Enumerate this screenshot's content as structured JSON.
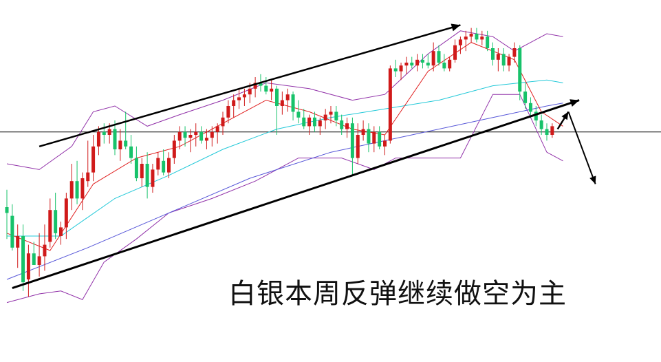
{
  "caption": "白银本周反弹继续做空为主",
  "colors": {
    "up": "#d01a1a",
    "down": "#17c26a",
    "ma_short": "#e02020",
    "ma_mid": "#20c8d8",
    "ma_long": "#5555d8",
    "band": "#9030a8",
    "trendline": "#000000",
    "level_line": "#000000"
  },
  "chart_data": {
    "type": "candlestick",
    "title": "",
    "grid": false,
    "y_range": [
      0,
      100
    ],
    "level_line": 61,
    "candles": [
      {
        "o": 35,
        "h": 41,
        "l": 24,
        "c": 33
      },
      {
        "o": 32,
        "h": 36,
        "l": 20,
        "c": 21
      },
      {
        "o": 21,
        "h": 29,
        "l": 14,
        "c": 25
      },
      {
        "o": 25,
        "h": 29,
        "l": 6,
        "c": 9
      },
      {
        "o": 10,
        "h": 22,
        "l": 4,
        "c": 19
      },
      {
        "o": 19,
        "h": 23,
        "l": 15,
        "c": 15
      },
      {
        "o": 15,
        "h": 26,
        "l": 11,
        "c": 18
      },
      {
        "o": 18,
        "h": 29,
        "l": 13,
        "c": 22
      },
      {
        "o": 23,
        "h": 38,
        "l": 21,
        "c": 34
      },
      {
        "o": 34,
        "h": 40,
        "l": 24,
        "c": 26
      },
      {
        "o": 25,
        "h": 30,
        "l": 22,
        "c": 28
      },
      {
        "o": 28,
        "h": 40,
        "l": 24,
        "c": 38
      },
      {
        "o": 38,
        "h": 50,
        "l": 34,
        "c": 44
      },
      {
        "o": 44,
        "h": 51,
        "l": 36,
        "c": 38
      },
      {
        "o": 38,
        "h": 47,
        "l": 34,
        "c": 45
      },
      {
        "o": 44,
        "h": 58,
        "l": 42,
        "c": 47
      },
      {
        "o": 47,
        "h": 60,
        "l": 44,
        "c": 56
      },
      {
        "o": 56,
        "h": 63,
        "l": 53,
        "c": 61
      },
      {
        "o": 61,
        "h": 64,
        "l": 57,
        "c": 60
      },
      {
        "o": 60,
        "h": 64,
        "l": 57,
        "c": 62
      },
      {
        "o": 62,
        "h": 65,
        "l": 53,
        "c": 55
      },
      {
        "o": 55,
        "h": 62,
        "l": 51,
        "c": 58
      },
      {
        "o": 58,
        "h": 68,
        "l": 55,
        "c": 56
      },
      {
        "o": 56,
        "h": 60,
        "l": 50,
        "c": 52
      },
      {
        "o": 52,
        "h": 56,
        "l": 44,
        "c": 45
      },
      {
        "o": 45,
        "h": 52,
        "l": 42,
        "c": 50
      },
      {
        "o": 50,
        "h": 54,
        "l": 38,
        "c": 42
      },
      {
        "o": 42,
        "h": 50,
        "l": 40,
        "c": 48
      },
      {
        "o": 48,
        "h": 54,
        "l": 46,
        "c": 52
      },
      {
        "o": 51,
        "h": 55,
        "l": 46,
        "c": 47
      },
      {
        "o": 47,
        "h": 54,
        "l": 45,
        "c": 52
      },
      {
        "o": 52,
        "h": 60,
        "l": 50,
        "c": 58
      },
      {
        "o": 58,
        "h": 63,
        "l": 55,
        "c": 61
      },
      {
        "o": 61,
        "h": 63,
        "l": 56,
        "c": 59
      },
      {
        "o": 59,
        "h": 62,
        "l": 54,
        "c": 60
      },
      {
        "o": 60,
        "h": 64,
        "l": 56,
        "c": 61
      },
      {
        "o": 61,
        "h": 63,
        "l": 57,
        "c": 58
      },
      {
        "o": 58,
        "h": 62,
        "l": 55,
        "c": 59
      },
      {
        "o": 59,
        "h": 63,
        "l": 56,
        "c": 61
      },
      {
        "o": 61,
        "h": 64,
        "l": 57,
        "c": 63
      },
      {
        "o": 63,
        "h": 68,
        "l": 60,
        "c": 66
      },
      {
        "o": 66,
        "h": 72,
        "l": 64,
        "c": 70
      },
      {
        "o": 70,
        "h": 74,
        "l": 66,
        "c": 72
      },
      {
        "o": 72,
        "h": 76,
        "l": 69,
        "c": 73
      },
      {
        "o": 73,
        "h": 76,
        "l": 70,
        "c": 74
      },
      {
        "o": 74,
        "h": 78,
        "l": 71,
        "c": 76
      },
      {
        "o": 76,
        "h": 80,
        "l": 73,
        "c": 78
      },
      {
        "o": 78,
        "h": 81,
        "l": 75,
        "c": 77
      },
      {
        "o": 77,
        "h": 80,
        "l": 74,
        "c": 75
      },
      {
        "o": 75,
        "h": 79,
        "l": 72,
        "c": 76
      },
      {
        "o": 76,
        "h": 77,
        "l": 60,
        "c": 70
      },
      {
        "o": 70,
        "h": 75,
        "l": 67,
        "c": 72
      },
      {
        "o": 72,
        "h": 76,
        "l": 68,
        "c": 74
      },
      {
        "o": 74,
        "h": 75,
        "l": 65,
        "c": 68
      },
      {
        "o": 68,
        "h": 72,
        "l": 64,
        "c": 66
      },
      {
        "o": 66,
        "h": 69,
        "l": 62,
        "c": 63
      },
      {
        "o": 63,
        "h": 67,
        "l": 60,
        "c": 66
      },
      {
        "o": 66,
        "h": 68,
        "l": 61,
        "c": 63
      },
      {
        "o": 63,
        "h": 66,
        "l": 60,
        "c": 65
      },
      {
        "o": 65,
        "h": 69,
        "l": 62,
        "c": 67
      },
      {
        "o": 67,
        "h": 70,
        "l": 64,
        "c": 68
      },
      {
        "o": 68,
        "h": 70,
        "l": 63,
        "c": 65
      },
      {
        "o": 65,
        "h": 67,
        "l": 60,
        "c": 62
      },
      {
        "o": 62,
        "h": 66,
        "l": 59,
        "c": 64
      },
      {
        "o": 64,
        "h": 66,
        "l": 46,
        "c": 52
      },
      {
        "o": 52,
        "h": 64,
        "l": 50,
        "c": 60
      },
      {
        "o": 60,
        "h": 65,
        "l": 58,
        "c": 62
      },
      {
        "o": 62,
        "h": 64,
        "l": 54,
        "c": 57
      },
      {
        "o": 57,
        "h": 63,
        "l": 54,
        "c": 61
      },
      {
        "o": 61,
        "h": 63,
        "l": 55,
        "c": 56
      },
      {
        "o": 56,
        "h": 60,
        "l": 53,
        "c": 58
      },
      {
        "o": 58,
        "h": 84,
        "l": 57,
        "c": 83
      },
      {
        "o": 83,
        "h": 86,
        "l": 80,
        "c": 82
      },
      {
        "o": 82,
        "h": 85,
        "l": 79,
        "c": 84
      },
      {
        "o": 84,
        "h": 87,
        "l": 81,
        "c": 85
      },
      {
        "o": 85,
        "h": 87,
        "l": 83,
        "c": 84
      },
      {
        "o": 84,
        "h": 88,
        "l": 82,
        "c": 86
      },
      {
        "o": 86,
        "h": 88,
        "l": 83,
        "c": 85
      },
      {
        "o": 85,
        "h": 88,
        "l": 83,
        "c": 84
      },
      {
        "o": 84,
        "h": 92,
        "l": 82,
        "c": 89
      },
      {
        "o": 89,
        "h": 91,
        "l": 84,
        "c": 85
      },
      {
        "o": 85,
        "h": 88,
        "l": 82,
        "c": 83
      },
      {
        "o": 83,
        "h": 87,
        "l": 82,
        "c": 86
      },
      {
        "o": 86,
        "h": 93,
        "l": 85,
        "c": 91
      },
      {
        "o": 91,
        "h": 94,
        "l": 88,
        "c": 93
      },
      {
        "o": 93,
        "h": 96,
        "l": 89,
        "c": 94
      },
      {
        "o": 94,
        "h": 97,
        "l": 92,
        "c": 95
      },
      {
        "o": 95,
        "h": 97,
        "l": 92,
        "c": 93
      },
      {
        "o": 93,
        "h": 96,
        "l": 91,
        "c": 94
      },
      {
        "o": 94,
        "h": 96,
        "l": 89,
        "c": 90
      },
      {
        "o": 90,
        "h": 92,
        "l": 84,
        "c": 86
      },
      {
        "o": 86,
        "h": 90,
        "l": 82,
        "c": 88
      },
      {
        "o": 88,
        "h": 90,
        "l": 82,
        "c": 84
      },
      {
        "o": 84,
        "h": 88,
        "l": 82,
        "c": 87
      },
      {
        "o": 87,
        "h": 92,
        "l": 85,
        "c": 90
      },
      {
        "o": 90,
        "h": 91,
        "l": 72,
        "c": 75
      },
      {
        "o": 75,
        "h": 78,
        "l": 69,
        "c": 71
      },
      {
        "o": 71,
        "h": 73,
        "l": 66,
        "c": 68
      },
      {
        "o": 68,
        "h": 70,
        "l": 63,
        "c": 65
      },
      {
        "o": 65,
        "h": 67,
        "l": 60,
        "c": 62
      },
      {
        "o": 62,
        "h": 64,
        "l": 58,
        "c": 60
      },
      {
        "o": 60,
        "h": 64,
        "l": 59,
        "c": 63
      }
    ],
    "ma_short": [
      [
        0,
        26
      ],
      [
        8,
        20
      ],
      [
        16,
        43
      ],
      [
        24,
        52
      ],
      [
        32,
        56
      ],
      [
        40,
        64
      ],
      [
        48,
        72
      ],
      [
        56,
        68
      ],
      [
        64,
        62
      ],
      [
        70,
        60
      ],
      [
        78,
        82
      ],
      [
        86,
        92
      ],
      [
        94,
        86
      ],
      [
        99,
        68
      ],
      [
        103,
        63
      ]
    ],
    "ma_mid": [
      [
        0,
        25
      ],
      [
        10,
        25
      ],
      [
        20,
        38
      ],
      [
        30,
        46
      ],
      [
        40,
        55
      ],
      [
        50,
        62
      ],
      [
        60,
        66
      ],
      [
        70,
        69
      ],
      [
        80,
        72
      ],
      [
        90,
        77
      ],
      [
        100,
        79
      ],
      [
        103,
        78
      ]
    ],
    "ma_long": [
      [
        0,
        10
      ],
      [
        15,
        21
      ],
      [
        30,
        33
      ],
      [
        45,
        45
      ],
      [
        60,
        54
      ],
      [
        75,
        60
      ],
      [
        90,
        66
      ],
      [
        100,
        70
      ],
      [
        103,
        71
      ]
    ],
    "band_upper": [
      [
        0,
        50
      ],
      [
        6,
        48
      ],
      [
        12,
        56
      ],
      [
        16,
        68
      ],
      [
        20,
        70
      ],
      [
        26,
        63
      ],
      [
        32,
        67
      ],
      [
        40,
        72
      ],
      [
        48,
        78
      ],
      [
        56,
        76
      ],
      [
        64,
        72
      ],
      [
        70,
        74
      ],
      [
        78,
        88
      ],
      [
        84,
        96
      ],
      [
        90,
        94
      ],
      [
        94,
        89
      ],
      [
        100,
        95
      ],
      [
        103,
        94
      ]
    ],
    "band_lower": [
      [
        0,
        2
      ],
      [
        6,
        5
      ],
      [
        10,
        6
      ],
      [
        14,
        3
      ],
      [
        18,
        16
      ],
      [
        24,
        24
      ],
      [
        30,
        33
      ],
      [
        38,
        38
      ],
      [
        46,
        44
      ],
      [
        54,
        52
      ],
      [
        62,
        52
      ],
      [
        68,
        48
      ],
      [
        72,
        52
      ],
      [
        78,
        52
      ],
      [
        84,
        52
      ],
      [
        90,
        74
      ],
      [
        95,
        74
      ],
      [
        100,
        54
      ],
      [
        103,
        51
      ]
    ],
    "trend_upper": {
      "from": [
        6,
        56
      ],
      "to": [
        84,
        98
      ]
    },
    "trend_lower": {
      "from": [
        1,
        7
      ],
      "to": [
        106,
        72
      ]
    },
    "projection": {
      "start": [
        102,
        62
      ],
      "peak": [
        104,
        68
      ],
      "end": [
        109,
        43
      ]
    }
  }
}
